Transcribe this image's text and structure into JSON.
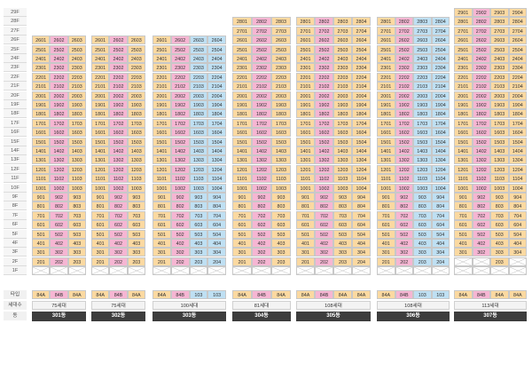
{
  "floors": [
    "29F",
    "28F",
    "27F",
    "26F",
    "25F",
    "24F",
    "23F",
    "22F",
    "21F",
    "20F",
    "19F",
    "18F",
    "17F",
    "16F",
    "15F",
    "14F",
    "13F",
    "12F",
    "11F",
    "10F",
    "9F",
    "8F",
    "7F",
    "6F",
    "5F",
    "4F",
    "3F",
    "2F",
    "1F"
  ],
  "row_labels": {
    "type": "타입",
    "households": "세대수",
    "dong": "동"
  },
  "buildings": [
    {
      "dong": "301동",
      "households": "75세대",
      "types": [
        {
          "t": "84A",
          "c": "A"
        },
        {
          "t": "84B",
          "c": "B"
        },
        {
          "t": "84A",
          "c": "A"
        }
      ],
      "cols": [
        1,
        2,
        3
      ],
      "top": 26,
      "pilotis": [],
      "partial": {}
    },
    {
      "dong": "302동",
      "households": "75세대",
      "types": [
        {
          "t": "84A",
          "c": "A"
        },
        {
          "t": "84B",
          "c": "B"
        },
        {
          "t": "84A",
          "c": "A"
        }
      ],
      "cols": [
        1,
        2,
        3
      ],
      "top": 26,
      "pilotis": [],
      "partial": {}
    },
    {
      "dong": "303동",
      "households": "100세대",
      "types": [
        {
          "t": "84A",
          "c": "A"
        },
        {
          "t": "84B",
          "c": "B"
        },
        {
          "t": "103",
          "c": "C"
        },
        {
          "t": "103",
          "c": "C"
        }
      ],
      "cols": [
        1,
        2,
        3,
        4
      ],
      "top": 26,
      "pilotis": [],
      "partial": {}
    },
    {
      "dong": "304동",
      "households": "81세대",
      "types": [
        {
          "t": "84A",
          "c": "A"
        },
        {
          "t": "84B",
          "c": "B"
        },
        {
          "t": "84A",
          "c": "A"
        }
      ],
      "cols": [
        1,
        2,
        3
      ],
      "top": 28,
      "pilotis": [],
      "partial": {}
    },
    {
      "dong": "305동",
      "households": "108세대",
      "types": [
        {
          "t": "84A",
          "c": "A"
        },
        {
          "t": "84B",
          "c": "B"
        },
        {
          "t": "84A",
          "c": "A"
        },
        {
          "t": "84A",
          "c": "A"
        }
      ],
      "cols": [
        1,
        2,
        3,
        4
      ],
      "top": 28,
      "pilotis": [],
      "partial": {}
    },
    {
      "dong": "306동",
      "households": "108세대",
      "types": [
        {
          "t": "84A",
          "c": "A"
        },
        {
          "t": "84B",
          "c": "B"
        },
        {
          "t": "103",
          "c": "C"
        },
        {
          "t": "103",
          "c": "C"
        }
      ],
      "cols": [
        1,
        2,
        3,
        4
      ],
      "top": 28,
      "pilotis": [],
      "partial": {}
    },
    {
      "dong": "307동",
      "households": "113세대",
      "types": [
        {
          "t": "84A",
          "c": "A"
        },
        {
          "t": "84B",
          "c": "B"
        },
        {
          "t": "84A",
          "c": "A"
        },
        {
          "t": "84A",
          "c": "A"
        }
      ],
      "cols": [
        1,
        2,
        3,
        4
      ],
      "top": 29,
      "pilotis": [],
      "partial": {
        "2": [
          3
        ]
      }
    }
  ],
  "colors": {
    "A": "#fbd9a1",
    "B": "#f6b6d3",
    "C": "#bfe0f3",
    "dong_bg": "#3d3d3d"
  }
}
